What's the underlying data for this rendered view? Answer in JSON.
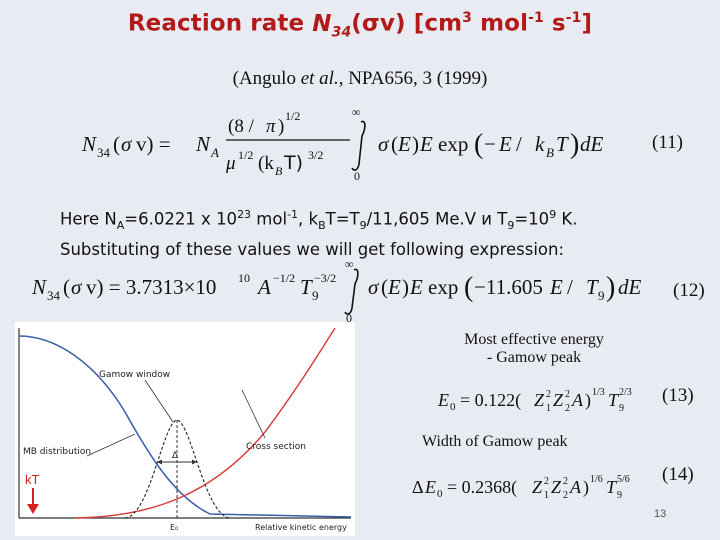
{
  "title": {
    "prefix": "Reaction rate ",
    "symbol": "N",
    "symbol_sub": "34",
    "middle": "(σv) [cm",
    "sup1": "3",
    "mid2": " mol",
    "sup2": "-1",
    "mid3": " s",
    "sup3": "-1",
    "end": "]"
  },
  "reference": {
    "open": "(Angulo ",
    "etal": "et al.",
    "rest": ", NPA656, 3 (1999)"
  },
  "equation_11": {
    "number": "(11)"
  },
  "explanation": {
    "line1_a": "Here  N",
    "line1_a_sub": "A",
    "line1_b": "=6.0221 x 10",
    "line1_b_sup": "23",
    "line1_c": " mol",
    "line1_c_sup": "-1",
    "line1_d": ", k",
    "line1_d_sub": "B",
    "line1_e": "T=T",
    "line1_e_sub": "9",
    "line1_f": "/11,605 Me.V и T",
    "line1_f_sub": "9",
    "line1_g": "=10",
    "line1_g_sup": "9",
    "line1_h": " K.",
    "line2": "Substituting of these values we will get following expression:"
  },
  "equation_12": {
    "number": "(12)"
  },
  "figure": {
    "gamow_window_label": "Gamow window",
    "mb_label": "MB distribution",
    "cross_section_label": "Cross section",
    "delta_label": "Δ",
    "kt_label": "kT",
    "e0_label": "E₀",
    "x_axis_label": "Relative kinetic energy",
    "colors": {
      "mb": "#3a5fa8",
      "cross": "#d84040",
      "kt": "#d62020"
    }
  },
  "gamow_peak": {
    "label_line1": "Most effective energy",
    "label_line2": "- Gamow peak",
    "number": "(13)"
  },
  "gamow_width": {
    "label": "Width of Gamow peak",
    "number": "(14)"
  },
  "page_number": "13"
}
